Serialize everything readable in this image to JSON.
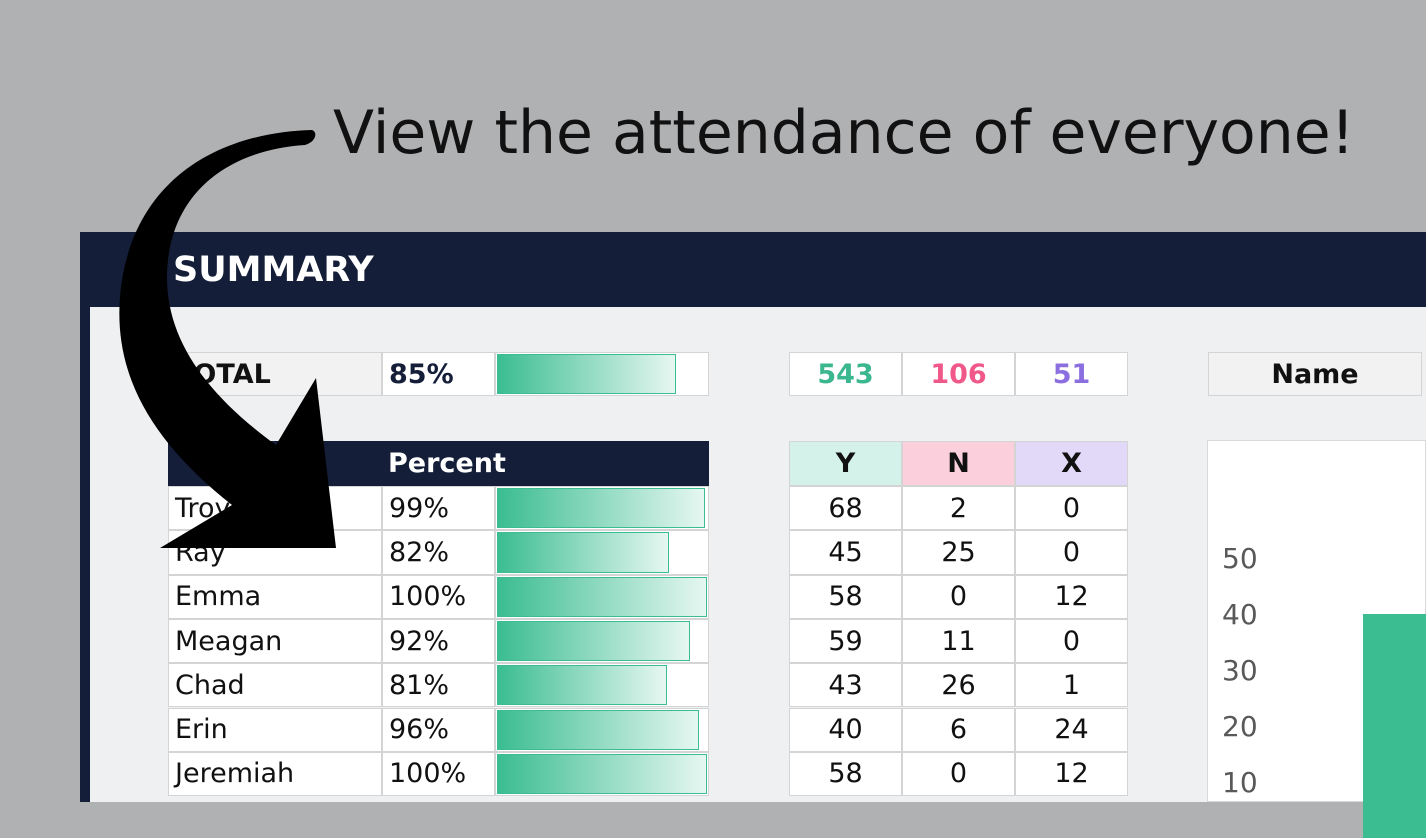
{
  "caption": "View the attendance of everyone!",
  "summary": {
    "title": "SUMMARY",
    "total": {
      "label": "TOTAL",
      "percent": {
        "value": 85,
        "label": "85%"
      },
      "y": 543,
      "n": 106,
      "x": 51
    }
  },
  "table": {
    "headers": [
      "Percent",
      "Y",
      "N",
      "X"
    ],
    "rows": [
      {
        "name": "Troy",
        "percent": {
          "value": 99,
          "label": "99%"
        },
        "y": 68,
        "n": 2,
        "x": 0
      },
      {
        "name": "Ray",
        "percent": {
          "value": 82,
          "label": "82%"
        },
        "y": 45,
        "n": 25,
        "x": 0
      },
      {
        "name": "Emma",
        "percent": {
          "value": 100,
          "label": "100%"
        },
        "y": 58,
        "n": 0,
        "x": 12
      },
      {
        "name": "Meagan",
        "percent": {
          "value": 92,
          "label": "92%"
        },
        "y": 59,
        "n": 11,
        "x": 0
      },
      {
        "name": "Chad",
        "percent": {
          "value": 81,
          "label": "81%"
        },
        "y": 43,
        "n": 26,
        "x": 1
      },
      {
        "name": "Erin",
        "percent": {
          "value": 96,
          "label": "96%"
        },
        "y": 40,
        "n": 6,
        "x": 24
      },
      {
        "name": "Jeremiah",
        "percent": {
          "value": 100,
          "label": "100%"
        },
        "y": 58,
        "n": 0,
        "x": 12
      }
    ]
  },
  "side": {
    "header": "Name",
    "chart": {
      "ylim": [
        0,
        60
      ],
      "yticks": [
        10,
        20,
        30,
        40,
        50
      ],
      "values": [
        40
      ]
    }
  }
}
